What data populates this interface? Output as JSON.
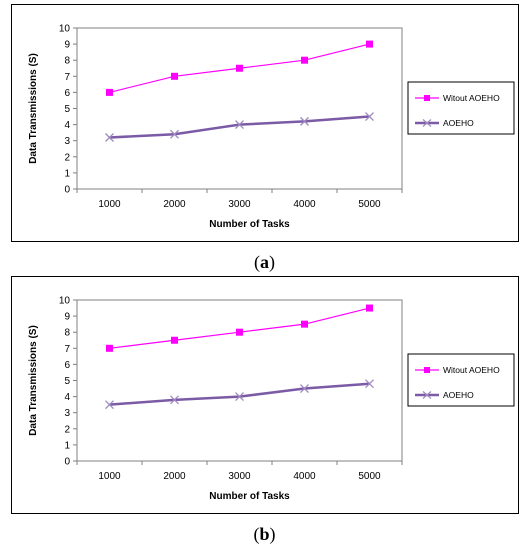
{
  "chart_data": [
    {
      "panel": "a",
      "type": "line",
      "caption": "(a)",
      "xlabel": "Number of Tasks",
      "ylabel": "Data Transmissions (S)",
      "categories": [
        "1000",
        "2000",
        "3000",
        "4000",
        "5000"
      ],
      "ylim": [
        0,
        10
      ],
      "yticks": [
        0,
        1,
        2,
        3,
        4,
        5,
        6,
        7,
        8,
        9,
        10
      ],
      "grid": false,
      "legend": "right",
      "series": [
        {
          "name": "Witout AOEHO",
          "values": [
            6,
            7,
            7.5,
            8,
            9
          ],
          "color": "#ff00ff",
          "marker": "square"
        },
        {
          "name": "AOEHO",
          "values": [
            3.2,
            3.4,
            4,
            4.2,
            4.5
          ],
          "color": "#7b5aa6",
          "marker": "x"
        }
      ]
    },
    {
      "panel": "b",
      "type": "line",
      "caption": "(b)",
      "xlabel": "Number of Tasks",
      "ylabel": "Data Transmissions (S)",
      "categories": [
        "1000",
        "2000",
        "3000",
        "4000",
        "5000"
      ],
      "ylim": [
        0,
        10
      ],
      "yticks": [
        0,
        1,
        2,
        3,
        4,
        5,
        6,
        7,
        8,
        9,
        10
      ],
      "grid": false,
      "legend": "right",
      "series": [
        {
          "name": "Witout AOEHO",
          "values": [
            7,
            7.5,
            8,
            8.5,
            9.5
          ],
          "color": "#ff00ff",
          "marker": "square"
        },
        {
          "name": "AOEHO",
          "values": [
            3.5,
            3.8,
            4,
            4.5,
            4.8
          ],
          "color": "#7b5aa6",
          "marker": "x"
        }
      ]
    }
  ]
}
